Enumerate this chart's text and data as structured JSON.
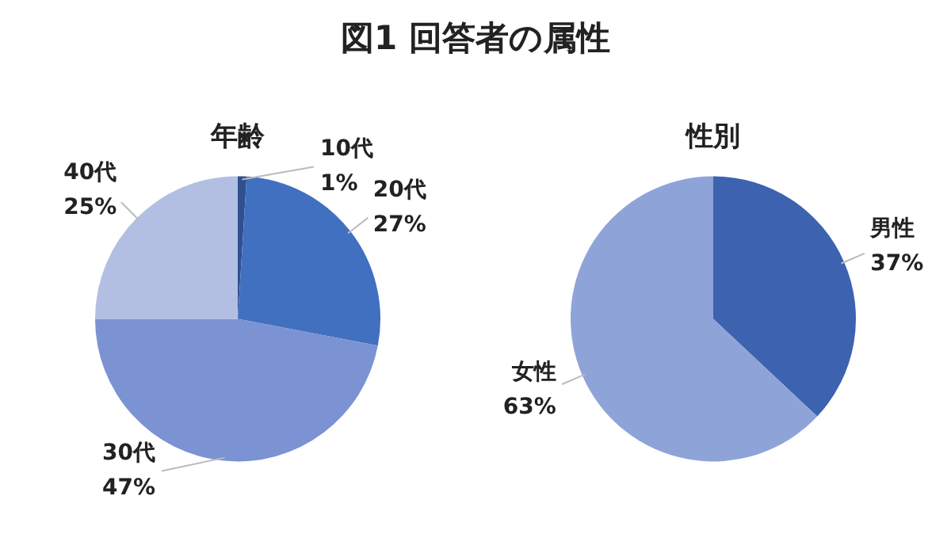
{
  "chart_data": [
    {
      "type": "other",
      "title": "図1 回答者の属性"
    },
    {
      "type": "pie",
      "title": "年齢",
      "categories": [
        "10代",
        "20代",
        "30代",
        "40代"
      ],
      "values": [
        1,
        27,
        47,
        25
      ],
      "value_labels": [
        "1%",
        "27%",
        "47%",
        "25%"
      ],
      "colors": [
        "#2f4f8f",
        "#4270c0",
        "#7b92d3",
        "#b3bfe2"
      ]
    },
    {
      "type": "pie",
      "title": "性別",
      "categories": [
        "男性",
        "女性"
      ],
      "values": [
        37,
        63
      ],
      "value_labels": [
        "37%",
        "63%"
      ],
      "colors": [
        "#3d62b0",
        "#8ea4d8"
      ]
    }
  ]
}
